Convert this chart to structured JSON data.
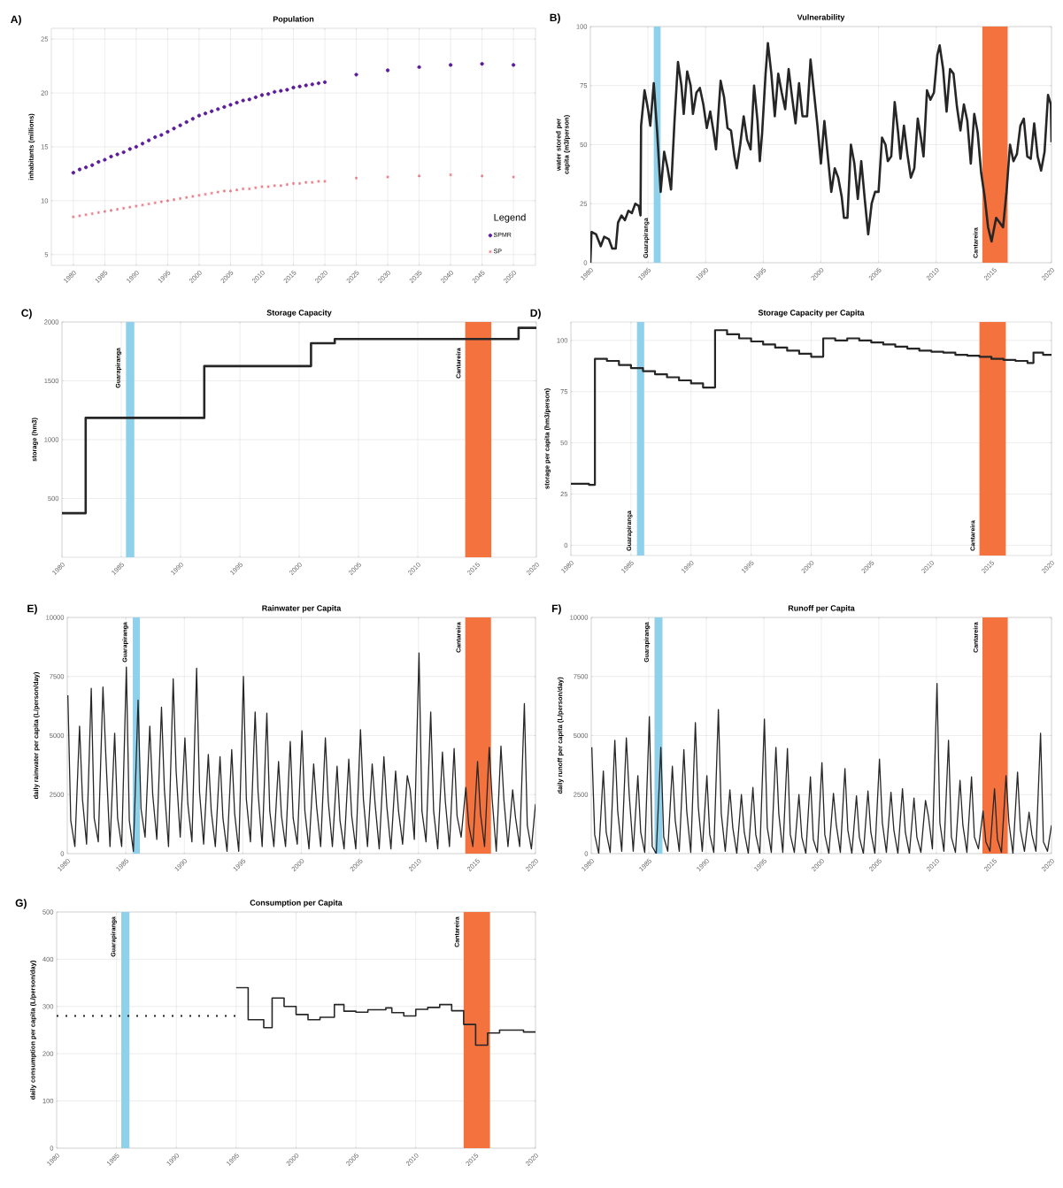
{
  "chart_data": [
    {
      "type": "scatter",
      "title": "Population",
      "ylabel": "inhabitants (millions)",
      "annotations": [
        "A)"
      ],
      "xlim": [
        1976.5,
        2053.5
      ],
      "xticks": [
        1980,
        1985,
        1990,
        1995,
        2000,
        2005,
        2010,
        2015,
        2020,
        2025,
        2030,
        2035,
        2040,
        2045,
        2050
      ],
      "ylim": [
        4,
        26
      ],
      "yticks": [
        5,
        10,
        15,
        20,
        25
      ],
      "grid": true,
      "legend": "bottom right",
      "legend_title": "Legend",
      "x": [
        1980,
        1981,
        1982,
        1983,
        1984,
        1985,
        1986,
        1987,
        1988,
        1989,
        1990,
        1991,
        1992,
        1993,
        1994,
        1995,
        1996,
        1997,
        1998,
        1999,
        2000,
        2001,
        2002,
        2003,
        2004,
        2005,
        2006,
        2007,
        2008,
        2009,
        2010,
        2011,
        2012,
        2013,
        2014,
        2015,
        2016,
        2017,
        2018,
        2019,
        2020,
        2025,
        2030,
        2035,
        2040,
        2045,
        2050
      ],
      "series": [
        {
          "name": "SPMR",
          "color": "#5a1a9a",
          "marker": "circle",
          "values": [
            12.6,
            12.9,
            13.1,
            13.3,
            13.6,
            13.8,
            14.1,
            14.3,
            14.5,
            14.8,
            15.0,
            15.3,
            15.6,
            15.9,
            16.1,
            16.4,
            16.7,
            17.0,
            17.3,
            17.6,
            17.9,
            18.1,
            18.3,
            18.5,
            18.7,
            18.9,
            19.1,
            19.3,
            19.4,
            19.6,
            19.8,
            19.9,
            20.1,
            20.2,
            20.3,
            20.5,
            20.6,
            20.7,
            20.8,
            20.9,
            21.0,
            21.7,
            22.1,
            22.4,
            22.6,
            22.7,
            22.6
          ]
        },
        {
          "name": "SP",
          "color": "#e87480",
          "marker": "cross",
          "values": [
            8.5,
            8.6,
            8.7,
            8.8,
            8.9,
            9.0,
            9.1,
            9.2,
            9.3,
            9.4,
            9.5,
            9.6,
            9.7,
            9.8,
            9.9,
            10.0,
            10.1,
            10.2,
            10.3,
            10.4,
            10.5,
            10.6,
            10.7,
            10.8,
            10.9,
            10.9,
            11.0,
            11.1,
            11.1,
            11.2,
            11.3,
            11.3,
            11.4,
            11.4,
            11.5,
            11.6,
            11.6,
            11.7,
            11.7,
            11.8,
            11.8,
            12.1,
            12.2,
            12.3,
            12.4,
            12.3,
            12.2
          ]
        }
      ]
    },
    {
      "type": "line",
      "title": "Vulnerability",
      "ylabel": "water stored per capita (m3/person)",
      "annotations": [
        "B)"
      ],
      "xlim": [
        1980,
        2020
      ],
      "xticks": [
        1980,
        1985,
        1990,
        1995,
        2000,
        2005,
        2010,
        2015,
        2020
      ],
      "ylim": [
        0,
        100
      ],
      "yticks": [
        0,
        25,
        50,
        75,
        100
      ],
      "grid": true,
      "bands": [
        {
          "axis": "x",
          "from": 1985.5,
          "to": 1986.1,
          "label": "Guarapiranga",
          "color": "#8fd0ea"
        },
        {
          "axis": "x",
          "from": 2014.0,
          "to": 2016.2,
          "label": "Cantareira",
          "color": "#f4723e"
        }
      ],
      "series": [
        {
          "color": "#262626",
          "x": [
            1980.0,
            1980.1,
            1980.5,
            1980.9,
            1981.2,
            1981.6,
            1981.9,
            1982.2,
            1982.4,
            1982.7,
            1983.0,
            1983.3,
            1983.6,
            1983.9,
            1984.2,
            1984.35,
            1984.4,
            1984.7,
            1985.0,
            1985.2,
            1985.5,
            1985.8,
            1986.1,
            1986.4,
            1986.7,
            1987.0,
            1987.3,
            1987.6,
            1987.9,
            1988.1,
            1988.4,
            1988.7,
            1988.9,
            1989.2,
            1989.5,
            1989.8,
            1990.1,
            1990.4,
            1990.7,
            1990.9,
            1991.3,
            1991.6,
            1991.9,
            1992.2,
            1992.5,
            1992.7,
            1993.0,
            1993.3,
            1993.6,
            1993.9,
            1994.2,
            1994.5,
            1994.7,
            1994.9,
            1995.2,
            1995.4,
            1995.7,
            1996.0,
            1996.3,
            1996.6,
            1996.9,
            1997.2,
            1997.5,
            1997.8,
            1998.1,
            1998.4,
            1998.8,
            1999.1,
            1999.4,
            1999.7,
            2000.0,
            2000.3,
            2000.6,
            2000.9,
            2001.2,
            2001.5,
            2001.8,
            2002.0,
            2002.3,
            2002.6,
            2002.9,
            2003.2,
            2003.5,
            2003.8,
            2004.1,
            2004.4,
            2004.7,
            2005.0,
            2005.3,
            2005.6,
            2005.8,
            2006.1,
            2006.4,
            2006.7,
            2006.9,
            2007.2,
            2007.5,
            2007.8,
            2008.1,
            2008.4,
            2008.7,
            2008.9,
            2009.2,
            2009.5,
            2009.8,
            2010.1,
            2010.3,
            2010.6,
            2010.9,
            2011.2,
            2011.5,
            2011.8,
            2012.1,
            2012.4,
            2012.7,
            2013.0,
            2013.3,
            2013.6,
            2013.9,
            2014.2,
            2014.5,
            2014.8,
            2015.2,
            2015.5,
            2015.8,
            2016.1,
            2016.4,
            2016.7,
            2017.0,
            2017.3,
            2017.6,
            2017.9,
            2018.2,
            2018.5,
            2018.8,
            2019.1,
            2019.4,
            2019.7,
            2019.95,
            2020.0
          ],
          "values": [
            0,
            13,
            12,
            7,
            11,
            10,
            6,
            6,
            17,
            20,
            18,
            22,
            21,
            25,
            24,
            20,
            58,
            73,
            65,
            58,
            76,
            55,
            30,
            47,
            40,
            31,
            60,
            85,
            75,
            63,
            81,
            75,
            63,
            72,
            74,
            67,
            57,
            64,
            55,
            48,
            77,
            70,
            57,
            56,
            45,
            40,
            50,
            62,
            52,
            48,
            75,
            60,
            43,
            55,
            80,
            93,
            80,
            62,
            80,
            72,
            65,
            82,
            70,
            59,
            76,
            62,
            62,
            86,
            72,
            58,
            42,
            60,
            45,
            30,
            40,
            36,
            28,
            19,
            19,
            50,
            42,
            27,
            43,
            27,
            12,
            25,
            30,
            30,
            53,
            50,
            43,
            45,
            68,
            55,
            44,
            58,
            46,
            36,
            40,
            61,
            52,
            45,
            73,
            69,
            72,
            88,
            92,
            82,
            64,
            82,
            80,
            66,
            56,
            67,
            60,
            42,
            63,
            55,
            38,
            28,
            15,
            9,
            19,
            17,
            15,
            30,
            50,
            43,
            46,
            58,
            61,
            45,
            44,
            59,
            45,
            39,
            47,
            71,
            67,
            51
          ]
        }
      ]
    },
    {
      "type": "step",
      "title": "Storage Capacity",
      "ylabel": "storage (hm3)",
      "annotations": [
        "C)"
      ],
      "xlim": [
        1980,
        2020
      ],
      "xticks": [
        1980,
        1985,
        1990,
        1995,
        2000,
        2005,
        2010,
        2015,
        2020
      ],
      "ylim": [
        0,
        2000
      ],
      "yticks": [
        500,
        1000,
        1500,
        2000
      ],
      "grid": true,
      "bands": [
        {
          "axis": "x",
          "from": 1985.4,
          "to": 1986.1,
          "label": "Guarapiranga",
          "color": "#8fd0ea"
        },
        {
          "axis": "x",
          "from": 2014.0,
          "to": 2016.2,
          "label": "Cantareira",
          "color": "#f4723e"
        }
      ],
      "series": [
        {
          "color": "#262626",
          "x": [
            1980,
            1982,
            1992,
            2001,
            2003,
            2018.5,
            2020
          ],
          "values": [
            375,
            1185,
            1625,
            1820,
            1855,
            1950,
            1950
          ]
        }
      ]
    },
    {
      "type": "step",
      "title": "Storage Capacity per Capita",
      "ylabel": "storage per capita (hm3/person)",
      "annotations": [
        "D)"
      ],
      "xlim": [
        1980,
        2020
      ],
      "xticks": [
        1980,
        1985,
        1990,
        1995,
        2000,
        2005,
        2010,
        2015,
        2020
      ],
      "ylim": [
        -5,
        109
      ],
      "yticks": [
        0,
        25,
        50,
        75,
        100
      ],
      "grid": true,
      "bands": [
        {
          "axis": "x",
          "from": 1985.5,
          "to": 1986.1,
          "label": "Guarapiranga",
          "color": "#8fd0ea"
        },
        {
          "axis": "x",
          "from": 2014.0,
          "to": 2016.2,
          "label": "Cantareira",
          "color": "#f4723e"
        }
      ],
      "series": [
        {
          "color": "#262626",
          "x": [
            1980,
            1981.5,
            1982,
            1983,
            1984,
            1985,
            1986,
            1987,
            1988,
            1989,
            1990,
            1991,
            1992,
            1993,
            1994,
            1995,
            1996,
            1997,
            1998,
            1999,
            2000,
            2001,
            2002,
            2003,
            2004,
            2005,
            2006,
            2007,
            2008,
            2009,
            2010,
            2011,
            2012,
            2013,
            2014,
            2015,
            2016,
            2017,
            2018,
            2018.5,
            2019.3,
            2020
          ],
          "values": [
            30,
            29.5,
            91,
            90,
            88,
            86.5,
            85,
            83.5,
            82,
            80.5,
            79,
            77,
            105,
            103,
            101,
            99.5,
            98,
            96.5,
            95,
            93.5,
            92,
            101,
            100,
            101,
            100,
            99,
            98,
            97,
            96,
            95,
            94.5,
            94,
            93,
            92.5,
            92,
            91,
            90.5,
            90,
            89,
            94,
            93,
            93
          ]
        }
      ]
    },
    {
      "type": "line",
      "title": "Rainwater per Capita",
      "ylabel": "daily rainwater per capita (L/person/day)",
      "annotations": [
        "E)"
      ],
      "xlim": [
        1980,
        2020
      ],
      "xticks": [
        1980,
        1985,
        1990,
        1995,
        2000,
        2005,
        2010,
        2015,
        2020
      ],
      "ylim": [
        0,
        10000
      ],
      "yticks": [
        0,
        2500,
        5000,
        7500,
        10000
      ],
      "grid": true,
      "bands": [
        {
          "axis": "x",
          "from": 1985.6,
          "to": 1986.2,
          "label": "Guarapiranga",
          "color": "#8fd0ea"
        },
        {
          "axis": "x",
          "from": 2014.0,
          "to": 2016.2,
          "label": "Cantareira",
          "color": "#f4723e"
        }
      ],
      "series": [
        {
          "color": "#262626",
          "x": [
            1980.05,
            1980.3,
            1980.65,
            1981.05,
            1981.3,
            1981.65,
            1982.05,
            1982.3,
            1982.65,
            1983.05,
            1983.3,
            1983.65,
            1984.05,
            1984.3,
            1984.65,
            1985.05,
            1985.3,
            1985.65,
            1986.05,
            1986.3,
            1986.65,
            1987.05,
            1987.3,
            1987.65,
            1988.05,
            1988.3,
            1988.65,
            1989.05,
            1989.3,
            1989.65,
            1990.05,
            1990.3,
            1990.65,
            1991.05,
            1991.3,
            1991.65,
            1992.05,
            1992.3,
            1992.65,
            1993.05,
            1993.3,
            1993.65,
            1994.05,
            1994.3,
            1994.65,
            1995.05,
            1995.3,
            1995.65,
            1996.05,
            1996.3,
            1996.65,
            1997.05,
            1997.3,
            1997.65,
            1998.05,
            1998.3,
            1998.65,
            1999.05,
            1999.3,
            1999.65,
            2000.05,
            2000.3,
            2000.65,
            2001.05,
            2001.3,
            2001.65,
            2002.05,
            2002.3,
            2002.65,
            2003.05,
            2003.3,
            2003.65,
            2004.05,
            2004.3,
            2004.65,
            2005.05,
            2005.3,
            2005.65,
            2006.05,
            2006.3,
            2006.65,
            2007.05,
            2007.3,
            2007.65,
            2008.05,
            2008.3,
            2008.65,
            2009.05,
            2009.3,
            2009.65,
            2010.05,
            2010.3,
            2010.65,
            2011.05,
            2011.3,
            2011.65,
            2012.05,
            2012.3,
            2012.65,
            2013.05,
            2013.3,
            2013.65,
            2014.05,
            2014.3,
            2014.65,
            2015.05,
            2015.3,
            2015.65,
            2016.05,
            2016.3,
            2016.65,
            2017.05,
            2017.3,
            2017.65,
            2018.05,
            2018.3,
            2018.65,
            2019.05,
            2019.3,
            2019.65,
            2020.0
          ],
          "values": [
            6700,
            1400,
            300,
            5400,
            2300,
            400,
            7000,
            1500,
            500,
            7050,
            4100,
            300,
            5100,
            1500,
            300,
            7900,
            1400,
            100,
            6500,
            1900,
            700,
            5400,
            2500,
            600,
            6200,
            2700,
            300,
            7400,
            3500,
            700,
            4900,
            2100,
            500,
            7850,
            2600,
            400,
            4200,
            1800,
            300,
            4100,
            1500,
            100,
            4400,
            1700,
            100,
            7500,
            2300,
            500,
            6000,
            2600,
            300,
            5950,
            1800,
            300,
            3900,
            1600,
            300,
            4750,
            1500,
            400,
            5200,
            1800,
            200,
            3800,
            2000,
            300,
            4900,
            2200,
            300,
            3700,
            1400,
            200,
            4000,
            1600,
            200,
            5250,
            2300,
            300,
            3800,
            2100,
            200,
            4100,
            2000,
            200,
            3500,
            1800,
            400,
            3300,
            2700,
            600,
            8500,
            1800,
            500,
            6000,
            1800,
            200,
            4300,
            2200,
            300,
            4450,
            1600,
            700,
            2800,
            1200,
            300,
            3900,
            1700,
            300,
            4500,
            2300,
            100,
            4550,
            2300,
            300,
            2700,
            1500,
            300,
            6350,
            1200,
            200,
            2100
          ]
        }
      ]
    },
    {
      "type": "line",
      "title": "Runoff per Capita",
      "ylabel": "daily runoff per capita (L/person/day)",
      "annotations": [
        "F)"
      ],
      "xlim": [
        1980,
        2020
      ],
      "xticks": [
        1980,
        1985,
        1990,
        1995,
        2000,
        2005,
        2010,
        2015,
        2020
      ],
      "ylim": [
        0,
        10000
      ],
      "yticks": [
        0,
        2500,
        5000,
        7500,
        10000
      ],
      "grid": true,
      "bands": [
        {
          "axis": "x",
          "from": 1985.5,
          "to": 1986.2,
          "label": "Guarapiranga",
          "color": "#8fd0ea"
        },
        {
          "axis": "x",
          "from": 2014.0,
          "to": 2016.2,
          "label": "Cantareira",
          "color": "#f4723e"
        }
      ],
      "series": [
        {
          "color": "#262626",
          "x": [
            1980.05,
            1980.3,
            1980.65,
            1981.05,
            1981.3,
            1981.65,
            1982.05,
            1982.3,
            1982.65,
            1983.05,
            1983.3,
            1983.65,
            1984.05,
            1984.3,
            1984.65,
            1985.05,
            1985.3,
            1985.65,
            1986.05,
            1986.3,
            1986.65,
            1987.05,
            1987.3,
            1987.65,
            1988.05,
            1988.3,
            1988.65,
            1989.05,
            1989.3,
            1989.65,
            1990.05,
            1990.3,
            1990.65,
            1991.05,
            1991.3,
            1991.65,
            1992.05,
            1992.3,
            1992.65,
            1993.05,
            1993.3,
            1993.65,
            1994.05,
            1994.3,
            1994.65,
            1995.05,
            1995.3,
            1995.65,
            1996.05,
            1996.3,
            1996.65,
            1997.05,
            1997.3,
            1997.65,
            1998.05,
            1998.3,
            1998.65,
            1999.05,
            1999.3,
            1999.65,
            2000.05,
            2000.3,
            2000.65,
            2001.05,
            2001.3,
            2001.65,
            2002.05,
            2002.3,
            2002.65,
            2003.05,
            2003.3,
            2003.65,
            2004.05,
            2004.3,
            2004.65,
            2005.05,
            2005.3,
            2005.65,
            2006.05,
            2006.3,
            2006.65,
            2007.05,
            2007.3,
            2007.65,
            2008.05,
            2008.3,
            2008.65,
            2009.05,
            2009.3,
            2009.65,
            2010.05,
            2010.3,
            2010.65,
            2011.05,
            2011.3,
            2011.65,
            2012.05,
            2012.3,
            2012.65,
            2013.05,
            2013.3,
            2013.65,
            2014.05,
            2014.3,
            2014.65,
            2015.05,
            2015.3,
            2015.65,
            2016.05,
            2016.3,
            2016.65,
            2017.05,
            2017.3,
            2017.65,
            2018.05,
            2018.3,
            2018.65,
            2019.05,
            2019.3,
            2019.65,
            2020.0
          ],
          "values": [
            4500,
            800,
            0,
            3500,
            900,
            50,
            4800,
            1800,
            100,
            4900,
            2500,
            100,
            3300,
            900,
            50,
            5800,
            300,
            0,
            4500,
            700,
            100,
            3700,
            1400,
            100,
            4400,
            1800,
            50,
            5550,
            2000,
            100,
            3300,
            800,
            50,
            6100,
            1700,
            100,
            2700,
            1100,
            0,
            2500,
            900,
            0,
            2800,
            800,
            0,
            5700,
            1100,
            50,
            4500,
            1700,
            50,
            4450,
            800,
            50,
            2500,
            700,
            0,
            3250,
            600,
            50,
            3850,
            800,
            0,
            2550,
            1200,
            50,
            3600,
            1000,
            0,
            2450,
            700,
            0,
            2650,
            900,
            0,
            4000,
            1300,
            50,
            2600,
            1000,
            0,
            2750,
            900,
            0,
            2350,
            700,
            50,
            2250,
            1600,
            200,
            7200,
            1300,
            100,
            4800,
            700,
            50,
            3100,
            1200,
            50,
            3250,
            700,
            200,
            1800,
            500,
            100,
            2750,
            600,
            50,
            3300,
            1300,
            0,
            3450,
            1000,
            100,
            1750,
            800,
            100,
            5100,
            500,
            100,
            1200
          ]
        }
      ]
    },
    {
      "type": "step",
      "title": "Consumption per Capita",
      "ylabel": "daily consumption per capita (L/person/day)",
      "annotations": [
        "G)"
      ],
      "xlim": [
        1980,
        2020
      ],
      "xticks": [
        1980,
        1985,
        1990,
        1995,
        2000,
        2005,
        2010,
        2015,
        2020
      ],
      "ylim": [
        0,
        500
      ],
      "yticks": [
        0,
        100,
        200,
        300,
        400,
        500
      ],
      "grid": true,
      "bands": [
        {
          "axis": "x",
          "from": 1985.4,
          "to": 1986.1,
          "label": "Guarapiranga",
          "color": "#8fd0ea"
        },
        {
          "axis": "x",
          "from": 2014.0,
          "to": 2016.2,
          "label": "Cantareira",
          "color": "#f4723e"
        }
      ],
      "series": [
        {
          "color": "#262626",
          "type": "line",
          "line_style": "dotted",
          "x": [
            1980,
            1995
          ],
          "values": [
            280,
            280
          ]
        },
        {
          "color": "#262626",
          "x": [
            1995,
            1996,
            1997.3,
            1998,
            1999,
            2000,
            2001,
            2002,
            2003.2,
            2004,
            2005,
            2006,
            2007.5,
            2008,
            2009,
            2010,
            2011,
            2012,
            2013,
            2014,
            2015,
            2016,
            2017,
            2019,
            2020
          ],
          "values": [
            340,
            272,
            255,
            318,
            300,
            283,
            272,
            277,
            304,
            290,
            288,
            293,
            297,
            287,
            280,
            294,
            298,
            304,
            291,
            262,
            218,
            244,
            250,
            246,
            246
          ]
        }
      ]
    }
  ]
}
